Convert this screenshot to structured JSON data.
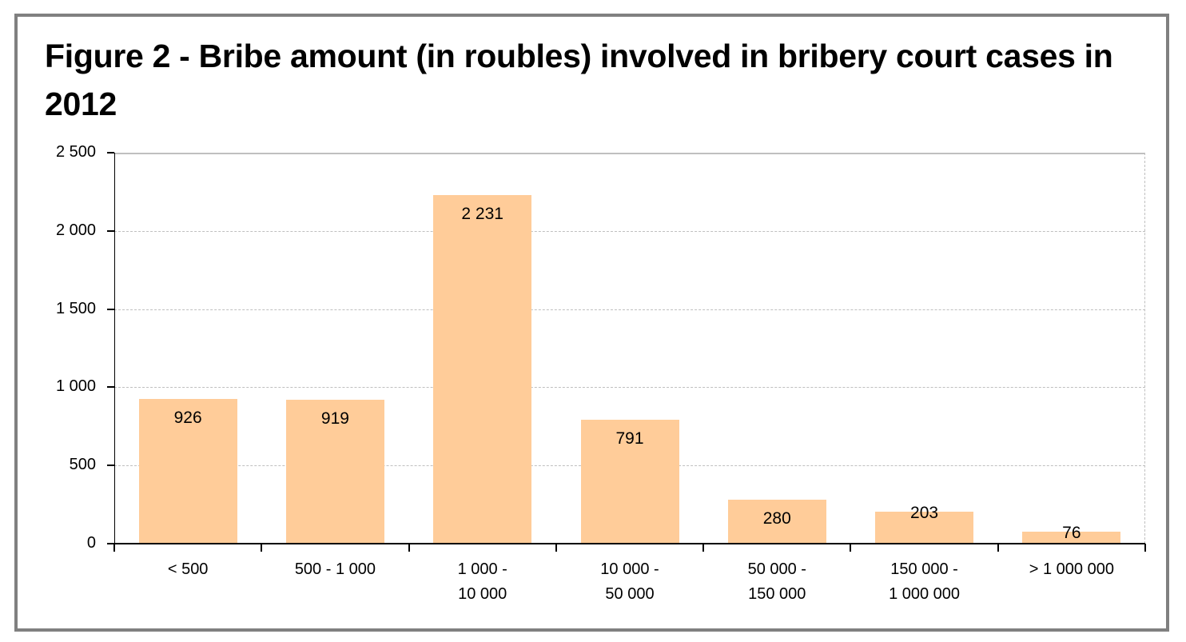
{
  "title": "Figure 2 - Bribe amount (in roubles) involved in bribery court cases in 2012",
  "y_axis": {
    "ticks": [
      {
        "value": 2500,
        "label": "2 500"
      },
      {
        "value": 2000,
        "label": "2 000"
      },
      {
        "value": 1500,
        "label": "1 500"
      },
      {
        "value": 1000,
        "label": "1 000"
      },
      {
        "value": 500,
        "label": "500"
      },
      {
        "value": 0,
        "label": "0"
      }
    ]
  },
  "bars": [
    {
      "category": "< 500",
      "value": 926,
      "label": "926"
    },
    {
      "category": "500 - 1 000",
      "value": 919,
      "label": "919"
    },
    {
      "category": "1 000 -\n10 000",
      "value": 2231,
      "label": "2 231"
    },
    {
      "category": "10 000 -\n50 000",
      "value": 791,
      "label": "791"
    },
    {
      "category": "50 000 -\n150 000",
      "value": 280,
      "label": "280"
    },
    {
      "category": "150 000 -\n1 000 000",
      "value": 203,
      "label": "203"
    },
    {
      "category": "> 1 000 000",
      "value": 76,
      "label": "76"
    }
  ],
  "colors": {
    "bar_fill": "#FFCC99",
    "frame": "#808080",
    "grid": "#BFBFBF"
  },
  "chart_data": {
    "type": "bar",
    "title": "Figure 2 - Bribe amount (in roubles) involved in bribery court cases in 2012",
    "categories": [
      "< 500",
      "500 - 1 000",
      "1 000 - 10 000",
      "10 000 - 50 000",
      "50 000 - 150 000",
      "150 000 - 1 000 000",
      "> 1 000 000"
    ],
    "values": [
      926,
      919,
      2231,
      791,
      280,
      203,
      76
    ],
    "xlabel": "",
    "ylabel": "",
    "ylim": [
      0,
      2500
    ],
    "yticks": [
      0,
      500,
      1000,
      1500,
      2000,
      2500
    ],
    "grid": "horizontal dashed",
    "legend": null,
    "data_labels": true
  }
}
